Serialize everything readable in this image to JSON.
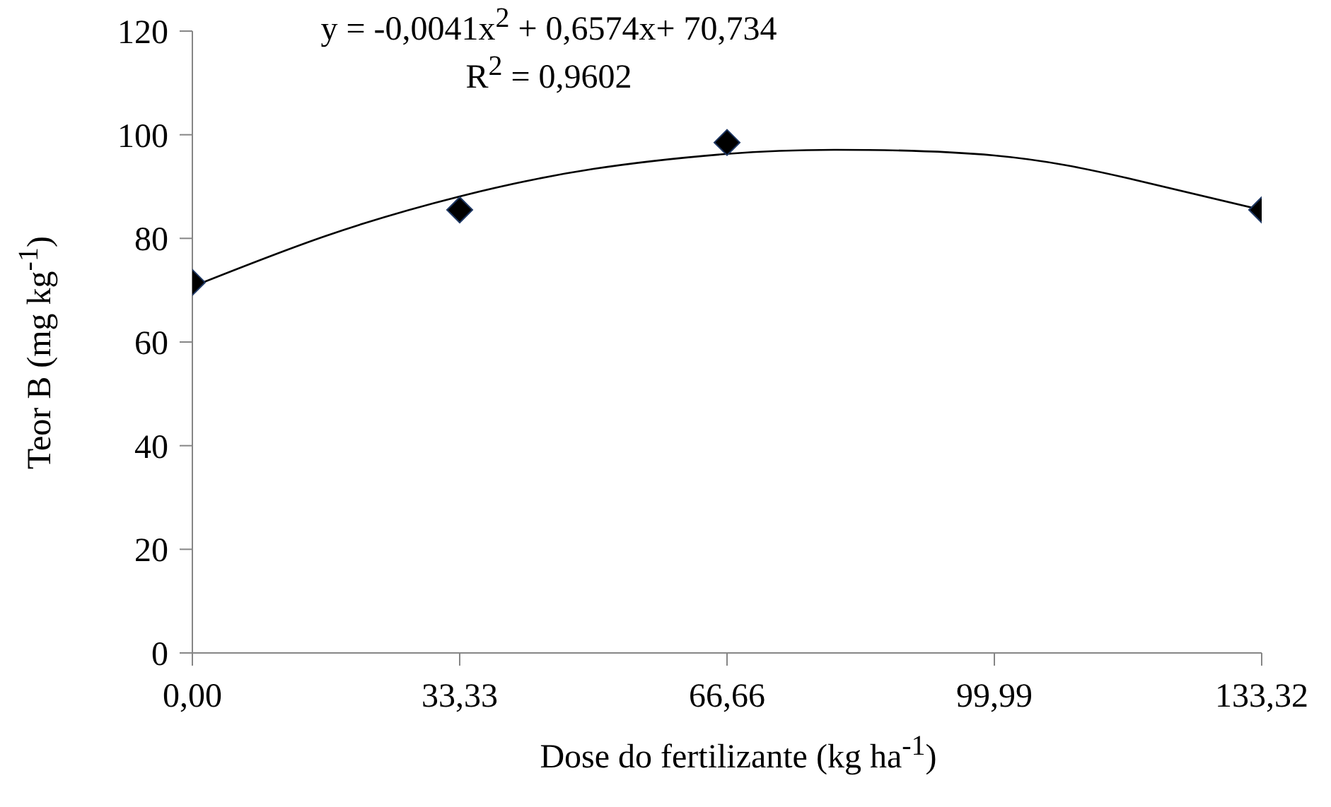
{
  "chart_data": {
    "type": "scatter",
    "xlabel": "Dose do fertilizante (kg ha$^{-1}$)",
    "ylabel": "Teor B (mg kg$^{-1}$)",
    "annotations": [
      "y = -0,0041x$^{2}$ + 0,6574x+ 70,734",
      "R$^{2}$ = 0,9602"
    ],
    "xlim": [
      0,
      133.32
    ],
    "xticks": [
      {
        "value": 0,
        "label": "0,00"
      },
      {
        "value": 33.33,
        "label": "33,33"
      },
      {
        "value": 66.66,
        "label": "66,66"
      },
      {
        "value": 99.99,
        "label": "99,99"
      },
      {
        "value": 133.32,
        "label": "133,32"
      }
    ],
    "ylim": [
      0,
      120
    ],
    "yticks": [
      0,
      20,
      40,
      60,
      80,
      100,
      120
    ],
    "grid": false,
    "legend": false,
    "marker": "diamond",
    "x": [
      0,
      33.33,
      66.66,
      133.32
    ],
    "series": [
      {
        "color": "#000000",
        "values": [
          71.5,
          85.5,
          98.5,
          85.5
        ]
      },
      {
        "type": "line",
        "color": "#000000",
        "marker": "none",
        "x": [
          0,
          16.67,
          33.33,
          50,
          66.66,
          80,
          99.99,
          116.66,
          133.32
        ],
        "values": [
          70.7,
          80.5,
          88.1,
          93.4,
          96.3,
          97.1,
          96.0,
          91.6,
          85.5
        ]
      }
    ]
  }
}
